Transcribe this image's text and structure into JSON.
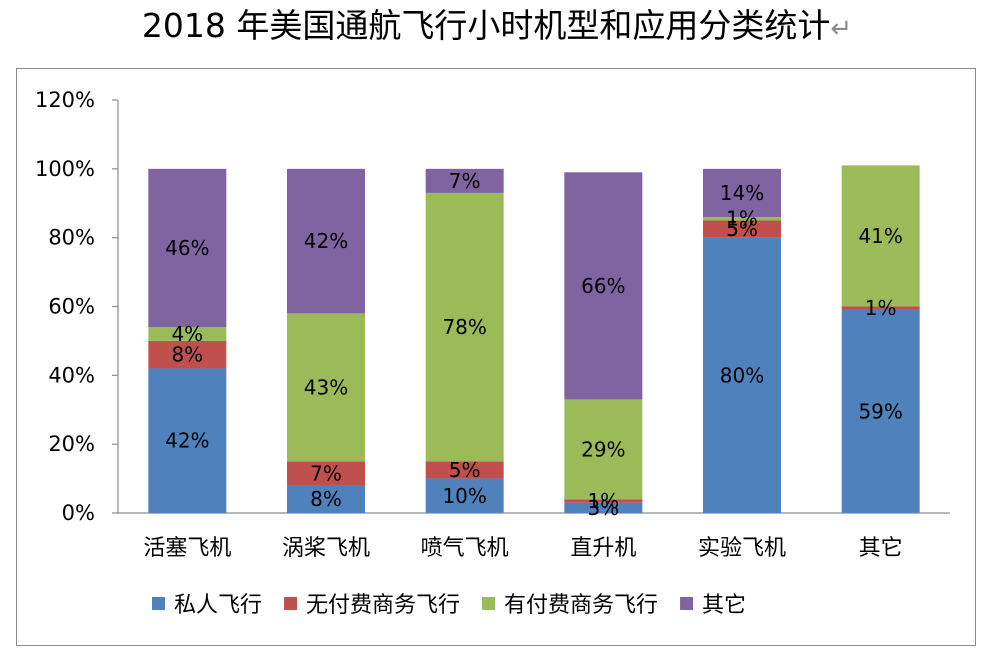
{
  "page_title": "2018 年美国通航飞行小时机型和应用分类统计",
  "title_return_mark": "↵",
  "chart_data": {
    "type": "bar",
    "stacked": true,
    "title": "2018 年美国通航飞行小时机型和应用分类统计",
    "categories": [
      "活塞飞机",
      "涡桨飞机",
      "喷气飞机",
      "直升机",
      "实验飞机",
      "其它"
    ],
    "series": [
      {
        "name": "私人飞行",
        "color": "#4f81bd",
        "values": [
          42,
          8,
          10,
          3,
          80,
          59
        ]
      },
      {
        "name": "无付费商务飞行",
        "color": "#c0504d",
        "values": [
          8,
          7,
          5,
          1,
          5,
          1
        ]
      },
      {
        "name": "有付费商务飞行",
        "color": "#9bbb59",
        "values": [
          4,
          43,
          78,
          29,
          1,
          41
        ]
      },
      {
        "name": "其它",
        "color": "#8064a2",
        "values": [
          46,
          42,
          7,
          66,
          14,
          0
        ]
      }
    ],
    "y_unit": "%",
    "ylim": [
      0,
      120
    ],
    "y_ticks": [
      0,
      20,
      40,
      60,
      80,
      100,
      120
    ],
    "y_tick_labels": [
      "0%",
      "20%",
      "40%",
      "60%",
      "80%",
      "100%",
      "120%"
    ],
    "data_labels": [
      [
        "42%",
        "8%",
        "4%",
        "46%"
      ],
      [
        "8%",
        "7%",
        "43%",
        "42%"
      ],
      [
        "10%",
        "5%",
        "78%",
        "7%"
      ],
      [
        "3%",
        "1%",
        "29%",
        "66%"
      ],
      [
        "80%",
        "5%",
        "1%",
        "14%"
      ],
      [
        "59%",
        "1%",
        "41%",
        ""
      ]
    ],
    "grid": false,
    "legend_position": "bottom"
  }
}
